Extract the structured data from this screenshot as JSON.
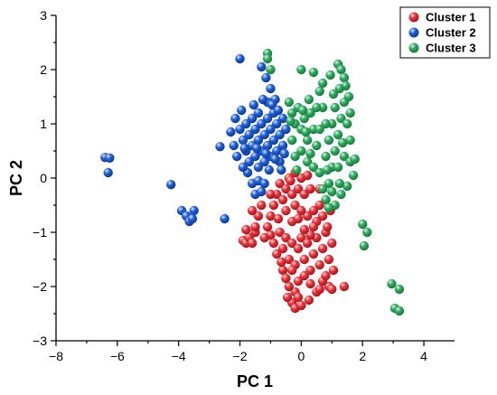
{
  "chart_data": {
    "type": "scatter",
    "title": "",
    "xlabel": "PC 1",
    "ylabel": "PC 2",
    "xlim": [
      -8,
      5
    ],
    "ylim": [
      -3,
      3
    ],
    "xticks": [
      "-8",
      "-6",
      "-4",
      "-2",
      "0",
      "2",
      "4"
    ],
    "yticks": [
      "-3",
      "-2",
      "-1",
      "0",
      "1",
      "2",
      "3"
    ],
    "grid": false,
    "legend_position": "top-right",
    "series": [
      {
        "name": "Cluster 1",
        "color": "#e8343c",
        "points": [
          [
            -1.9,
            -1.15
          ],
          [
            -1.8,
            -1.2
          ],
          [
            -1.7,
            -1.1
          ],
          [
            -1.6,
            -1.2
          ],
          [
            -1.5,
            -1.0
          ],
          [
            -1.4,
            -0.7
          ],
          [
            -1.6,
            -0.6
          ],
          [
            -1.3,
            -0.5
          ],
          [
            -1.5,
            -0.9
          ],
          [
            -1.8,
            -0.95
          ],
          [
            -1.0,
            -1.05
          ],
          [
            -1.1,
            -0.9
          ],
          [
            -1.0,
            -0.7
          ],
          [
            -0.9,
            -0.5
          ],
          [
            -0.8,
            -0.3
          ],
          [
            -0.7,
            -0.1
          ],
          [
            -0.6,
            -0.4
          ],
          [
            -0.5,
            -0.6
          ],
          [
            -0.5,
            -0.2
          ],
          [
            -0.4,
            0.0
          ],
          [
            -0.3,
            -0.3
          ],
          [
            -0.2,
            -0.5
          ],
          [
            -0.3,
            -0.8
          ],
          [
            -0.1,
            -0.2
          ],
          [
            0.0,
            0.0
          ],
          [
            0.1,
            -0.3
          ],
          [
            0.2,
            0.05
          ],
          [
            0.3,
            -0.2
          ],
          [
            -0.2,
            0.1
          ],
          [
            -0.35,
            -0.05
          ],
          [
            -0.9,
            -1.2
          ],
          [
            -0.8,
            -1.4
          ],
          [
            -0.7,
            -1.0
          ],
          [
            -0.6,
            -1.3
          ],
          [
            -0.5,
            -1.1
          ],
          [
            -0.4,
            -1.5
          ],
          [
            -0.3,
            -1.2
          ],
          [
            -0.2,
            -1.6
          ],
          [
            -0.1,
            -1.3
          ],
          [
            0.0,
            -1.1
          ],
          [
            0.1,
            -1.5
          ],
          [
            0.2,
            -1.2
          ],
          [
            0.3,
            -1.7
          ],
          [
            0.4,
            -1.4
          ],
          [
            0.5,
            -1.1
          ],
          [
            0.6,
            -1.6
          ],
          [
            0.7,
            -1.3
          ],
          [
            0.8,
            -1.0
          ],
          [
            0.9,
            -1.5
          ],
          [
            1.0,
            -1.2
          ],
          [
            1.05,
            -1.7
          ],
          [
            0.9,
            -2.0
          ],
          [
            0.7,
            -1.9
          ],
          [
            0.5,
            -2.1
          ],
          [
            0.3,
            -1.95
          ],
          [
            0.1,
            -1.8
          ],
          [
            -0.1,
            -1.9
          ],
          [
            -0.2,
            -2.1
          ],
          [
            -0.3,
            -1.7
          ],
          [
            -0.4,
            -2.0
          ],
          [
            -0.3,
            -2.3
          ],
          [
            -0.2,
            -2.4
          ],
          [
            -0.1,
            -2.2
          ],
          [
            0.5,
            -0.8
          ],
          [
            0.6,
            -0.5
          ],
          [
            0.4,
            -0.6
          ],
          [
            0.2,
            -0.7
          ],
          [
            0.0,
            -0.6
          ],
          [
            -0.1,
            -0.75
          ],
          [
            0.7,
            -0.7
          ],
          [
            0.8,
            -0.4
          ],
          [
            0.6,
            -0.2
          ],
          [
            0.4,
            -0.9
          ],
          [
            0.3,
            -1.05
          ],
          [
            0.1,
            -0.95
          ],
          [
            -0.6,
            -1.7
          ],
          [
            -0.5,
            -1.85
          ],
          [
            0.8,
            -1.8
          ],
          [
            1.0,
            -2.05
          ],
          [
            0.6,
            -2.05
          ],
          [
            -1.0,
            -0.3
          ],
          [
            1.4,
            -2.0
          ],
          [
            0.85,
            -0.9
          ],
          [
            0.95,
            -0.6
          ],
          [
            -0.75,
            -0.75
          ],
          [
            -1.2,
            -1.1
          ],
          [
            -0.65,
            -1.55
          ],
          [
            0.25,
            -2.25
          ],
          [
            0.0,
            -2.35
          ],
          [
            -0.45,
            -2.2
          ]
        ]
      },
      {
        "name": "Cluster 2",
        "color": "#1f5fd6",
        "points": [
          [
            -6.4,
            0.38
          ],
          [
            -6.25,
            0.37
          ],
          [
            -6.3,
            0.1
          ],
          [
            -4.25,
            -0.12
          ],
          [
            -3.9,
            -0.6
          ],
          [
            -3.75,
            -0.7
          ],
          [
            -3.65,
            -0.8
          ],
          [
            -3.5,
            -0.6
          ],
          [
            -3.55,
            -0.75
          ],
          [
            -2.5,
            -0.75
          ],
          [
            -2.65,
            0.58
          ],
          [
            -2.0,
            2.2
          ],
          [
            -1.3,
            2.05
          ],
          [
            -1.15,
            1.85
          ],
          [
            -1.0,
            1.65
          ],
          [
            -0.85,
            1.45
          ],
          [
            -1.1,
            1.4
          ],
          [
            -2.2,
            0.6
          ],
          [
            -2.1,
            0.4
          ],
          [
            -2.0,
            0.9
          ],
          [
            -1.9,
            0.7
          ],
          [
            -1.8,
            0.5
          ],
          [
            -1.8,
            1.0
          ],
          [
            -1.7,
            0.3
          ],
          [
            -1.7,
            0.8
          ],
          [
            -1.6,
            0.6
          ],
          [
            -1.6,
            1.1
          ],
          [
            -1.5,
            0.4
          ],
          [
            -1.5,
            0.9
          ],
          [
            -1.4,
            0.2
          ],
          [
            -1.4,
            0.7
          ],
          [
            -1.4,
            1.2
          ],
          [
            -1.3,
            0.5
          ],
          [
            -1.3,
            1.0
          ],
          [
            -1.2,
            0.3
          ],
          [
            -1.2,
            0.8
          ],
          [
            -1.1,
            0.6
          ],
          [
            -1.1,
            1.1
          ],
          [
            -1.0,
            0.4
          ],
          [
            -1.0,
            0.9
          ],
          [
            -0.9,
            0.7
          ],
          [
            -0.9,
            1.2
          ],
          [
            -0.8,
            0.5
          ],
          [
            -0.8,
            1.0
          ],
          [
            -0.7,
            0.8
          ],
          [
            -0.7,
            0.3
          ],
          [
            -0.6,
            0.6
          ],
          [
            -0.6,
            1.1
          ],
          [
            -0.5,
            0.9
          ],
          [
            -1.75,
            0.1
          ],
          [
            -1.6,
            -0.1
          ],
          [
            -1.5,
            -0.3
          ],
          [
            -1.4,
            -0.05
          ],
          [
            -1.3,
            -0.25
          ],
          [
            -1.2,
            -0.1
          ],
          [
            -1.9,
            0.2
          ],
          [
            -2.3,
            0.85
          ],
          [
            -2.15,
            1.1
          ],
          [
            -1.95,
            1.25
          ],
          [
            -1.55,
            1.35
          ],
          [
            -1.25,
            1.45
          ],
          [
            -0.95,
            1.35
          ],
          [
            -0.75,
            1.25
          ],
          [
            -0.55,
            0.45
          ],
          [
            -0.65,
            0.15
          ],
          [
            -1.05,
            0.15
          ],
          [
            -1.85,
            0.55
          ],
          [
            -1.45,
            0.55
          ],
          [
            -1.15,
            0.45
          ],
          [
            -0.85,
            0.35
          ]
        ]
      },
      {
        "name": "Cluster 3",
        "color": "#2faa60",
        "points": [
          [
            -1.1,
            2.3
          ],
          [
            -1.1,
            2.2
          ],
          [
            -1.0,
            2.0
          ],
          [
            0.0,
            2.0
          ],
          [
            0.4,
            1.95
          ],
          [
            0.7,
            1.75
          ],
          [
            0.95,
            1.9
          ],
          [
            1.2,
            2.1
          ],
          [
            1.3,
            2.0
          ],
          [
            1.4,
            1.85
          ],
          [
            -0.4,
            1.4
          ],
          [
            -0.3,
            1.2
          ],
          [
            -0.2,
            1.0
          ],
          [
            -0.1,
            1.3
          ],
          [
            0.0,
            0.9
          ],
          [
            0.1,
            1.1
          ],
          [
            0.2,
            0.7
          ],
          [
            0.3,
            1.2
          ],
          [
            0.4,
            0.9
          ],
          [
            0.5,
            0.6
          ],
          [
            -0.3,
            0.7
          ],
          [
            -0.2,
            0.4
          ],
          [
            0.0,
            0.5
          ],
          [
            0.2,
            0.3
          ],
          [
            0.4,
            0.2
          ],
          [
            0.6,
            0.1
          ],
          [
            0.7,
            -0.2
          ],
          [
            0.8,
            -0.4
          ],
          [
            0.9,
            -0.1
          ],
          [
            1.0,
            0.2
          ],
          [
            1.1,
            0.5
          ],
          [
            1.2,
            0.8
          ],
          [
            1.3,
            1.1
          ],
          [
            1.4,
            1.4
          ],
          [
            1.5,
            1.0
          ],
          [
            1.6,
            0.7
          ],
          [
            1.1,
            1.3
          ],
          [
            1.0,
            1.0
          ],
          [
            0.9,
            0.7
          ],
          [
            0.8,
            1.0
          ],
          [
            0.7,
            1.3
          ],
          [
            0.6,
            1.6
          ],
          [
            0.5,
            1.3
          ],
          [
            0.6,
            0.9
          ],
          [
            0.8,
            0.4
          ],
          [
            1.2,
            0.2
          ],
          [
            1.4,
            0.4
          ],
          [
            1.6,
            0.3
          ],
          [
            1.7,
            0.05
          ],
          [
            1.5,
            -0.15
          ],
          [
            1.3,
            -0.3
          ],
          [
            1.1,
            -0.5
          ],
          [
            0.9,
            -0.55
          ],
          [
            1.45,
            1.7
          ],
          [
            1.55,
            1.5
          ],
          [
            1.6,
            1.2
          ],
          [
            1.35,
            0.65
          ],
          [
            1.25,
            -0.1
          ],
          [
            2.0,
            -0.85
          ],
          [
            2.15,
            -1.0
          ],
          [
            2.05,
            -1.25
          ],
          [
            2.95,
            -1.95
          ],
          [
            3.2,
            -2.05
          ],
          [
            3.05,
            -2.4
          ],
          [
            3.2,
            -2.45
          ],
          [
            0.25,
            1.45
          ],
          [
            0.05,
            1.25
          ],
          [
            -0.15,
            0.15
          ],
          [
            0.3,
            0.45
          ],
          [
            0.15,
            0.85
          ],
          [
            1.05,
            1.55
          ],
          [
            1.25,
            1.65
          ],
          [
            0.85,
            0.15
          ],
          [
            1.75,
            0.35
          ],
          [
            -0.35,
            1.05
          ],
          [
            1.0,
            -0.25
          ]
        ]
      }
    ]
  }
}
